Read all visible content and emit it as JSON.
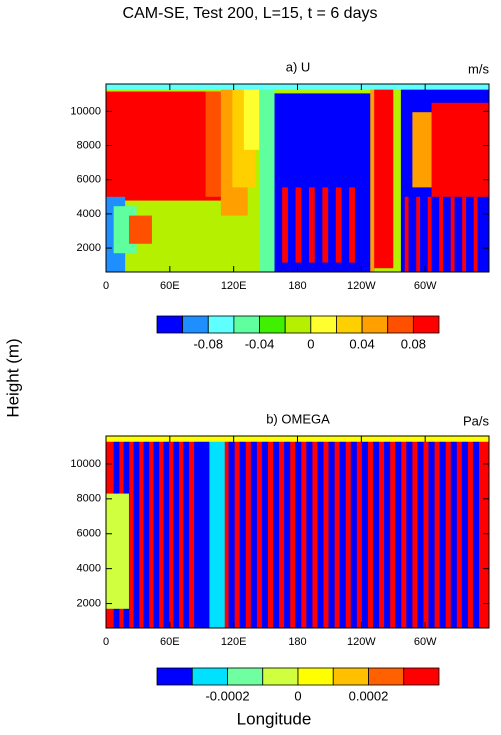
{
  "figure": {
    "title": "CAM-SE, Test 200, L=15, t = 6 days",
    "y_label": "Height (m)",
    "x_label": "Longitude"
  },
  "chart_data": [
    {
      "type": "contour",
      "title": "a) U",
      "units": "m/s",
      "xlim": [
        0,
        360
      ],
      "xticks": [
        0,
        {
          "value": 60,
          "label": "60E"
        },
        {
          "value": 120,
          "label": "120E"
        },
        180,
        {
          "value": 240,
          "label": "120W"
        },
        {
          "value": 300,
          "label": "60W"
        }
      ],
      "ylim": [
        600,
        11600
      ],
      "yticks": [
        2000,
        4000,
        6000,
        8000,
        10000
      ],
      "colorbar": {
        "lim": [
          -0.12,
          0.1
        ],
        "ticks": [
          -0.08,
          -0.04,
          0,
          0.04,
          0.08
        ],
        "colors": [
          "#0000ff",
          "#1f8fff",
          "#5fffff",
          "#5fffa0",
          "#40f000",
          "#b4f000",
          "#ffff30",
          "#ffd000",
          "#ffa000",
          "#ff5000",
          "#ff0000"
        ]
      }
    },
    {
      "type": "contour",
      "title": "b) OMEGA",
      "units": "Pa/s",
      "xlim": [
        0,
        360
      ],
      "xticks": [
        0,
        {
          "value": 60,
          "label": "60E"
        },
        {
          "value": 120,
          "label": "120E"
        },
        180,
        {
          "value": 240,
          "label": "120W"
        },
        {
          "value": 300,
          "label": "60W"
        }
      ],
      "ylim": [
        600,
        11600
      ],
      "yticks": [
        2000,
        4000,
        6000,
        8000,
        10000
      ],
      "colorbar": {
        "lim": [
          -0.0004,
          0.0004
        ],
        "ticks": [
          -0.0002,
          0,
          0.0002
        ],
        "colors": [
          "#0000ff",
          "#00e0ff",
          "#70ffa0",
          "#d0ff40",
          "#ffff00",
          "#ffc000",
          "#ff6000",
          "#ff0000"
        ]
      }
    }
  ]
}
